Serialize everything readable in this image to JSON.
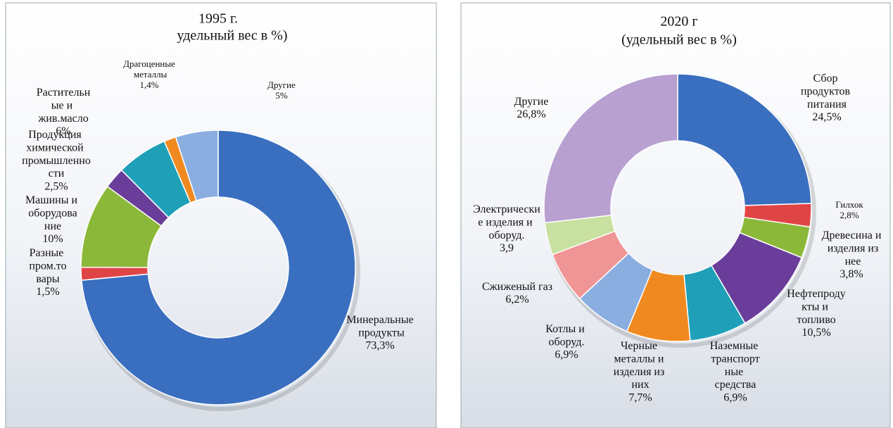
{
  "chart_data": [
    {
      "type": "donut",
      "title": "1995 г.",
      "subtitle": "удельный вес в %)",
      "categories": [
        "Минеральные продукты",
        "Разные пром.товары",
        "Машины и оборудование",
        "Продукция химической промышленности",
        "Растительные и жив.масло",
        "Драгоценные металлы",
        "Другие"
      ],
      "values": [
        73.3,
        1.5,
        10,
        2.5,
        6,
        1.4,
        5
      ],
      "value_labels": [
        "73,3%",
        "1,5%",
        "10%",
        "2,5%",
        "6%",
        "1,4%",
        "5%"
      ],
      "colors": [
        "#3a6fc0",
        "#e04545",
        "#8cb83a",
        "#6a3d9a",
        "#1fa0b8",
        "#f08a20",
        "#8aaee0"
      ]
    },
    {
      "type": "donut",
      "title": "2020 г",
      "subtitle": "(удельный вес в %)",
      "categories": [
        "Сбор продуктов питания",
        "Гилхок",
        "Древесина и изделия из нее",
        "Нефтепродукты и топливо",
        "Наземные транспортные средства",
        "Черные металлы и изделия из них",
        "Котлы и оборуд.",
        "Сжиженый газ",
        "Электрические изделия и оборуд.",
        "Другие"
      ],
      "values": [
        24.5,
        2.8,
        3.8,
        10.5,
        6.9,
        7.7,
        6.9,
        6.2,
        3.9,
        26.8
      ],
      "value_labels": [
        "24,5%",
        "2,8%",
        "3,8%",
        "10,5%",
        "6,9%",
        "7,7%",
        "6,9%",
        "6,2%",
        "3,9",
        "26,8%"
      ],
      "colors": [
        "#3a6fc0",
        "#e04545",
        "#8cb83a",
        "#6a3d9a",
        "#1fa0b8",
        "#f08a20",
        "#8aaee0",
        "#f09595",
        "#c8e0a0",
        "#b8a0d0"
      ]
    }
  ]
}
